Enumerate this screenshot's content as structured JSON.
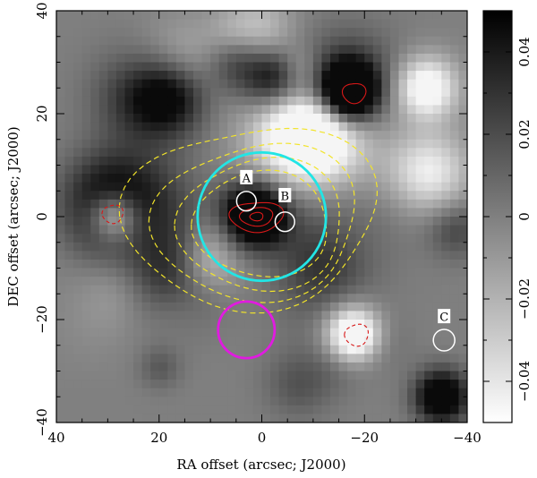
{
  "chart_data": {
    "type": "heatmap",
    "title": "",
    "xlabel": "RA offset (arcsec; J2000)",
    "ylabel": "DEC offset (arcsec; J2000)",
    "xlim": [
      40,
      -40
    ],
    "ylim": [
      -40,
      40
    ],
    "x_ticks": [
      40,
      20,
      0,
      -20,
      -40
    ],
    "y_ticks": [
      -40,
      -20,
      0,
      20,
      40
    ],
    "x_tick_labels": [
      "40",
      "20",
      "0",
      "−20",
      "−40"
    ],
    "y_tick_labels": [
      "−40",
      "−20",
      "0",
      "20",
      "40"
    ],
    "colorbar": {
      "range": [
        -0.05,
        0.05
      ],
      "ticks": [
        -0.04,
        -0.02,
        0,
        0.02,
        0.04
      ],
      "tick_labels": [
        "−0.04",
        "−0.02",
        "0",
        "0.02",
        "0.04"
      ],
      "colormap": "white-to-black"
    },
    "circles": [
      {
        "name": "cyan",
        "x": 0,
        "y": 0,
        "r": 12.5,
        "color": "#22e5e5"
      },
      {
        "name": "magenta",
        "x": 3,
        "y": -22,
        "r": 5.5,
        "color": "#e01be0"
      },
      {
        "name": "A",
        "x": 3,
        "y": 3,
        "r": 1.9,
        "color": "#ffffff"
      },
      {
        "name": "B",
        "x": -4.5,
        "y": -1,
        "r": 1.9,
        "color": "#ffffff"
      },
      {
        "name": "C",
        "x": -35.5,
        "y": -24,
        "r": 2.1,
        "color": "#ffffff"
      }
    ],
    "source_labels": [
      {
        "text": "A",
        "x": 3,
        "y": 7.5
      },
      {
        "text": "B",
        "x": -4.5,
        "y": 4
      },
      {
        "text": "C",
        "x": -35.5,
        "y": -19.5
      }
    ],
    "contours": {
      "yellow_dashed_color": "#f2e42a",
      "red_color": "#d81818"
    }
  }
}
